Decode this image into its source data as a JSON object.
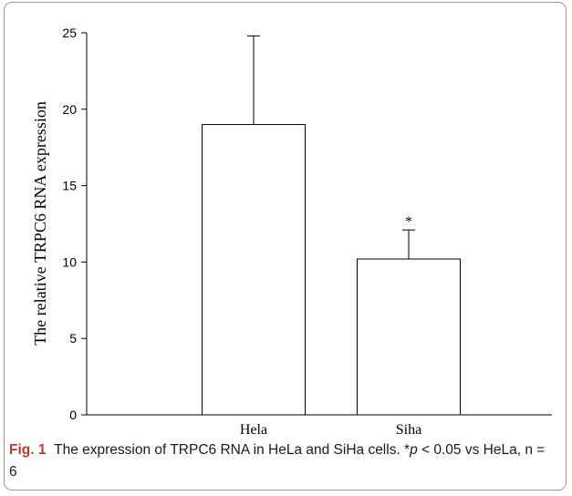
{
  "chart_data": {
    "type": "bar",
    "categories": [
      "Hela",
      "Siha"
    ],
    "values": [
      19.0,
      10.2
    ],
    "error_bars": [
      5.8,
      1.9
    ],
    "annotations": [
      "",
      "*"
    ],
    "ylabel": "The relative TRPC6 RNA expression",
    "xlabel": "",
    "ylim": [
      0,
      25
    ],
    "yticks": [
      0,
      5,
      10,
      15,
      20,
      25
    ],
    "grid": false,
    "legend": "none"
  },
  "caption": {
    "fig_label": "Fig. 1",
    "text_pre": "The expression of TRPC6 RNA in HeLa and SiHa cells. *",
    "p_symbol": "p",
    "text_post": " < 0.05 vs HeLa, n = 6"
  },
  "colors": {
    "bar_fill": "#ffffff",
    "bar_stroke": "#000000",
    "caption_label": "#c0392b"
  }
}
